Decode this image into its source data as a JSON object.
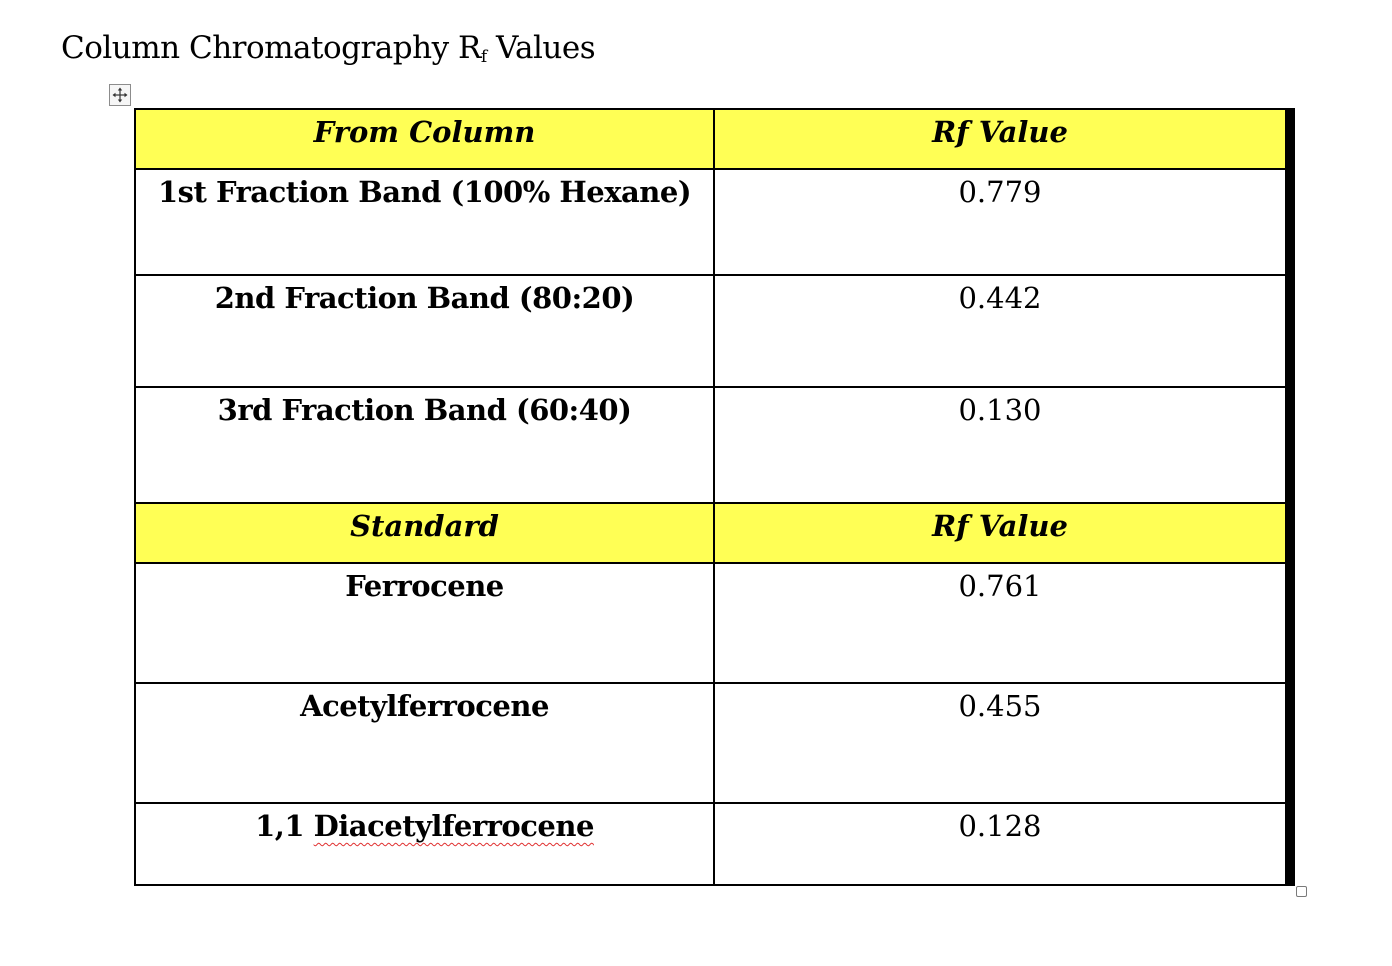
{
  "document": {
    "title_main": "Column Chromatography R",
    "title_sub": "f",
    "title_tail": " Values"
  },
  "table": {
    "section1": {
      "header_left": "From Column",
      "header_right": "Rf Value",
      "rows": [
        {
          "label": "1st Fraction Band (100% Hexane)",
          "value": "0.779"
        },
        {
          "label": "2nd Fraction Band (80:20)",
          "value": "0.442"
        },
        {
          "label": "3rd Fraction Band (60:40)",
          "value": "0.130"
        }
      ]
    },
    "section2": {
      "header_left": "Standard",
      "header_right": "Rf Value",
      "rows": [
        {
          "label": "Ferrocene",
          "value": "0.761"
        },
        {
          "label": "Acetylferrocene",
          "value": "0.455"
        },
        {
          "label_prefix": "1,1 ",
          "label_flagged": "Diacetylferrocene",
          "value": "0.128"
        }
      ]
    }
  },
  "icons": {
    "move_handle": "table-move-icon",
    "resize_handle": "table-resize-icon"
  },
  "colors": {
    "header_fill": "#ffff55",
    "spellcheck_underline": "#e03030"
  }
}
